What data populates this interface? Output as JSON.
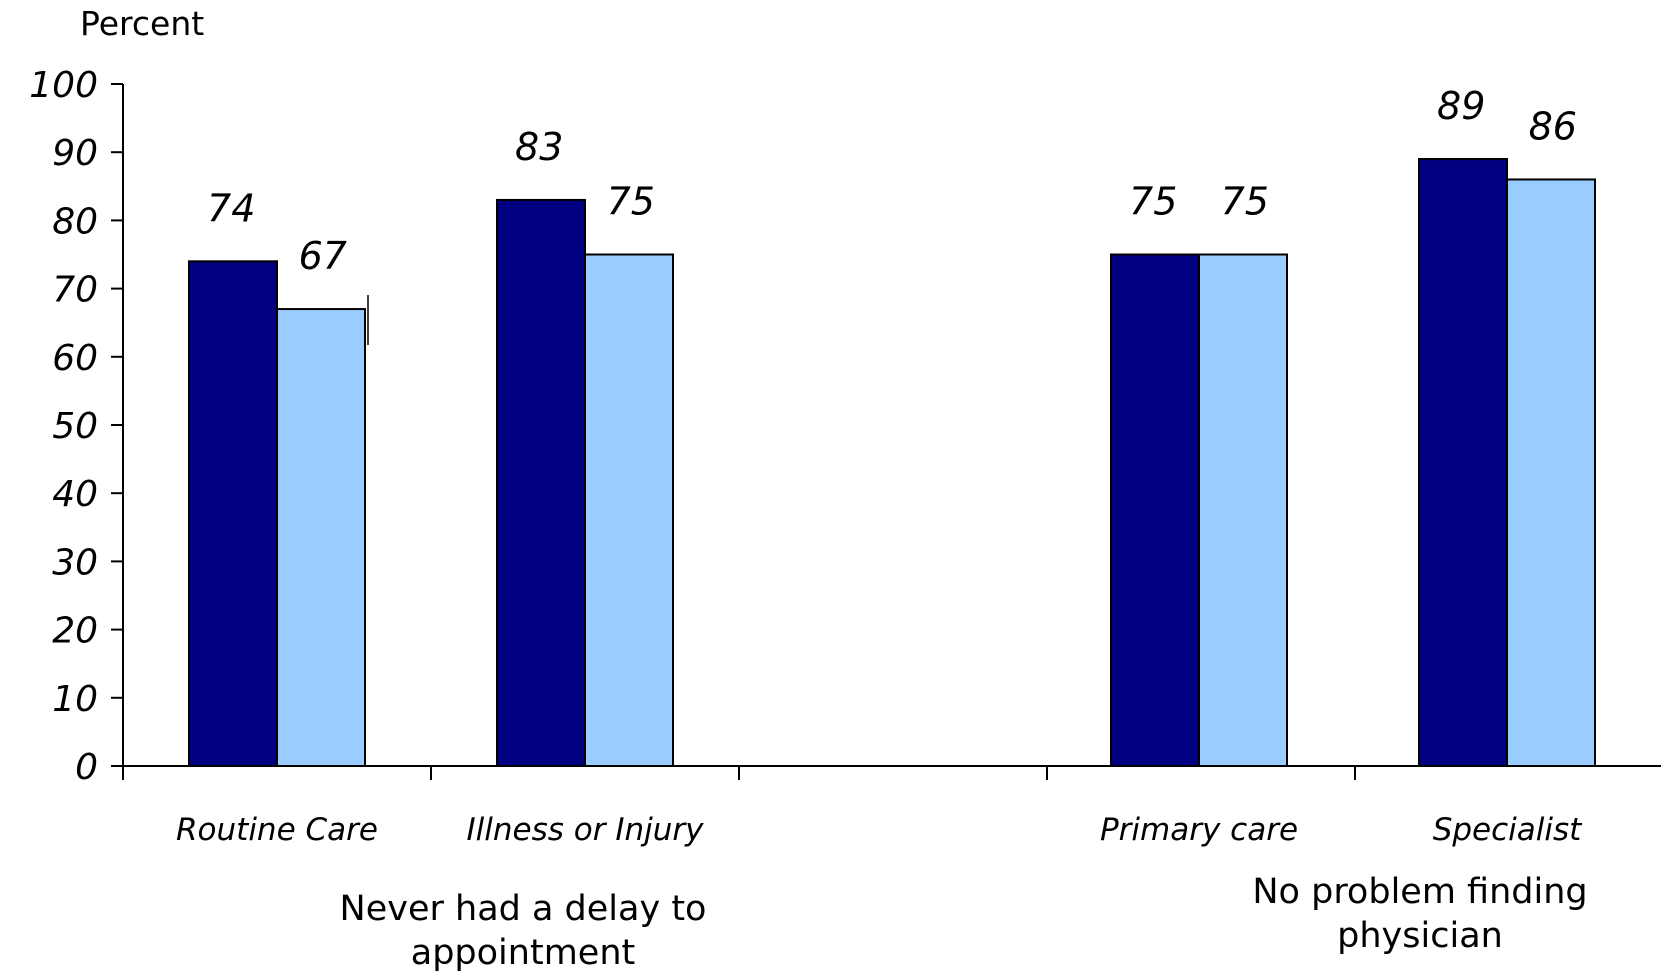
{
  "chart_data": {
    "type": "bar",
    "ylabel": "Percent",
    "ylim": [
      0,
      100
    ],
    "yticks": [
      0,
      10,
      20,
      30,
      40,
      50,
      60,
      70,
      80,
      90,
      100
    ],
    "grid": false,
    "legend": "none",
    "groups": [
      {
        "label_lines": [
          "Never had a delay to",
          "appointment"
        ],
        "categories": [
          "Routine Care",
          "Illness or Injury"
        ]
      },
      {
        "label_lines": [
          "No problem finding",
          "physician"
        ],
        "categories": [
          "Primary care",
          "Specialist"
        ]
      }
    ],
    "categories": [
      "Routine Care",
      "Illness or Injury",
      "Primary care",
      "Specialist"
    ],
    "series": [
      {
        "color": "#000080",
        "values": [
          74,
          83,
          75,
          89
        ]
      },
      {
        "color": "#99ccff",
        "values": [
          67,
          75,
          75,
          86
        ]
      }
    ]
  }
}
